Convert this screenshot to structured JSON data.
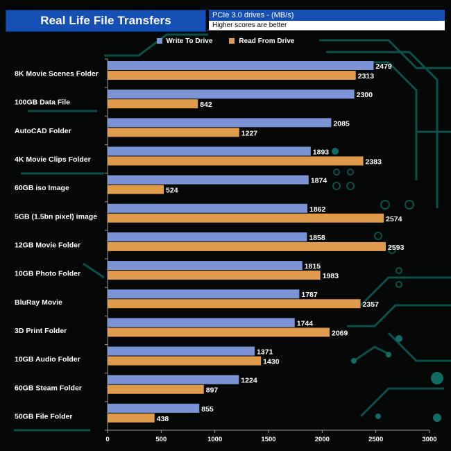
{
  "header": {
    "title": "Real Life File Transfers",
    "subtitle": "PCIe 3.0 drives - (MB/s)",
    "note": "Higher scores are better"
  },
  "chart_data": {
    "type": "bar",
    "orientation": "horizontal",
    "categories": [
      "8K Movie Scenes Folder",
      "100GB Data File",
      "AutoCAD Folder",
      "4K Movie Clips Folder",
      "60GB iso Image",
      "5GB (1.5bn pixel) image",
      "12GB Movie Folder",
      "10GB Photo Folder",
      "BluRay Movie",
      "3D Print Folder",
      "10GB Audio Folder",
      "60GB Steam Folder",
      "50GB File Folder"
    ],
    "series": [
      {
        "name": "Write To  Drive",
        "color": "#7b94d6",
        "values": [
          2479,
          2300,
          2085,
          1893,
          1874,
          1862,
          1858,
          1815,
          1787,
          1744,
          1371,
          1224,
          855
        ]
      },
      {
        "name": "Read From Drive",
        "color": "#e09a4c",
        "values": [
          2313,
          842,
          1227,
          2383,
          524,
          2574,
          2593,
          1983,
          2357,
          2069,
          1430,
          897,
          438
        ]
      }
    ],
    "xlim": [
      0,
      3000
    ],
    "xticks": [
      0,
      500,
      1000,
      1500,
      2000,
      2500,
      3000
    ],
    "legend_position": "top-center",
    "grid": false
  },
  "colors": {
    "background": "#050807",
    "circuit": "#0f5e5a",
    "header_blue": "#1650b4",
    "label_text": "#ffffff",
    "axis": "#9a9a9a"
  }
}
